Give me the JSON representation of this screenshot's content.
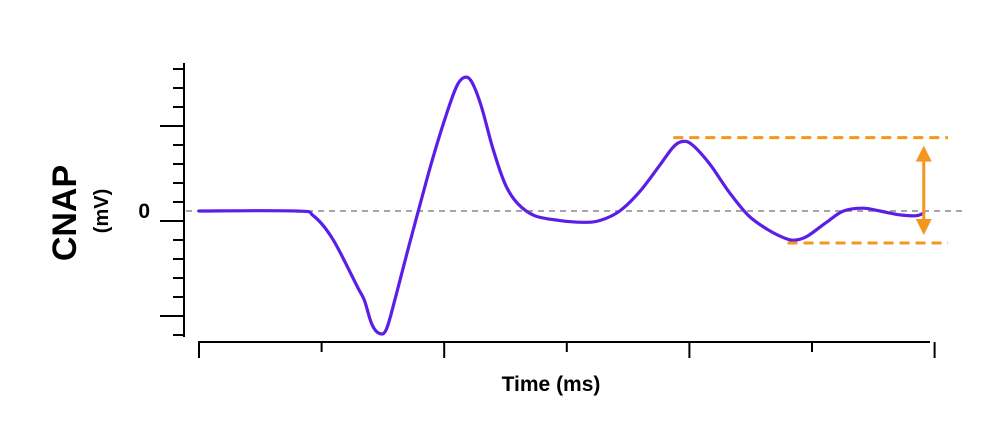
{
  "chart_data": {
    "type": "line",
    "title": "",
    "ylabel": "CNAP",
    "ylabel_unit": "(mV)",
    "xlabel": "Time (ms)",
    "ytick_label_zero": "0",
    "xlim": [
      0,
      30
    ],
    "ylim": [
      -1.35,
      1.55
    ],
    "zero_line": true,
    "series": [
      {
        "color": "#5a1ee6",
        "points": [
          [
            0,
            0
          ],
          [
            4.0,
            0
          ],
          [
            4.7,
            -0.05
          ],
          [
            5.5,
            -0.3
          ],
          [
            6.5,
            -0.8
          ],
          [
            6.8,
            -0.95
          ],
          [
            7.1,
            -1.2
          ],
          [
            7.4,
            -1.3
          ],
          [
            7.7,
            -1.26
          ],
          [
            8.1,
            -0.9
          ],
          [
            8.6,
            -0.4
          ],
          [
            9.1,
            0.08
          ],
          [
            9.6,
            0.55
          ],
          [
            10.2,
            1.05
          ],
          [
            10.6,
            1.33
          ],
          [
            10.9,
            1.42
          ],
          [
            11.2,
            1.38
          ],
          [
            11.6,
            1.12
          ],
          [
            12.1,
            0.65
          ],
          [
            12.6,
            0.28
          ],
          [
            13.1,
            0.08
          ],
          [
            13.8,
            -0.05
          ],
          [
            14.8,
            -0.1
          ],
          [
            15.8,
            -0.12
          ],
          [
            16.5,
            -0.1
          ],
          [
            17.3,
            0.0
          ],
          [
            18.1,
            0.2
          ],
          [
            18.9,
            0.47
          ],
          [
            19.5,
            0.68
          ],
          [
            19.9,
            0.74
          ],
          [
            20.3,
            0.7
          ],
          [
            21.0,
            0.5
          ],
          [
            21.8,
            0.2
          ],
          [
            22.6,
            -0.05
          ],
          [
            23.4,
            -0.2
          ],
          [
            24.1,
            -0.29
          ],
          [
            24.5,
            -0.31
          ],
          [
            25.0,
            -0.27
          ],
          [
            25.8,
            -0.12
          ],
          [
            26.5,
            0.0
          ],
          [
            27.3,
            0.03
          ],
          [
            28.0,
            0.0
          ],
          [
            28.8,
            -0.04
          ],
          [
            29.5,
            -0.05
          ],
          [
            29.8,
            -0.02
          ]
        ]
      }
    ],
    "annotation": {
      "color": "#f5961e",
      "upper_line": {
        "x": [
          19.5,
          30.8
        ],
        "y": 0.78
      },
      "lower_line": {
        "x": [
          24.2,
          30.8
        ],
        "y": -0.34
      },
      "arrow_x": 29.8
    }
  }
}
